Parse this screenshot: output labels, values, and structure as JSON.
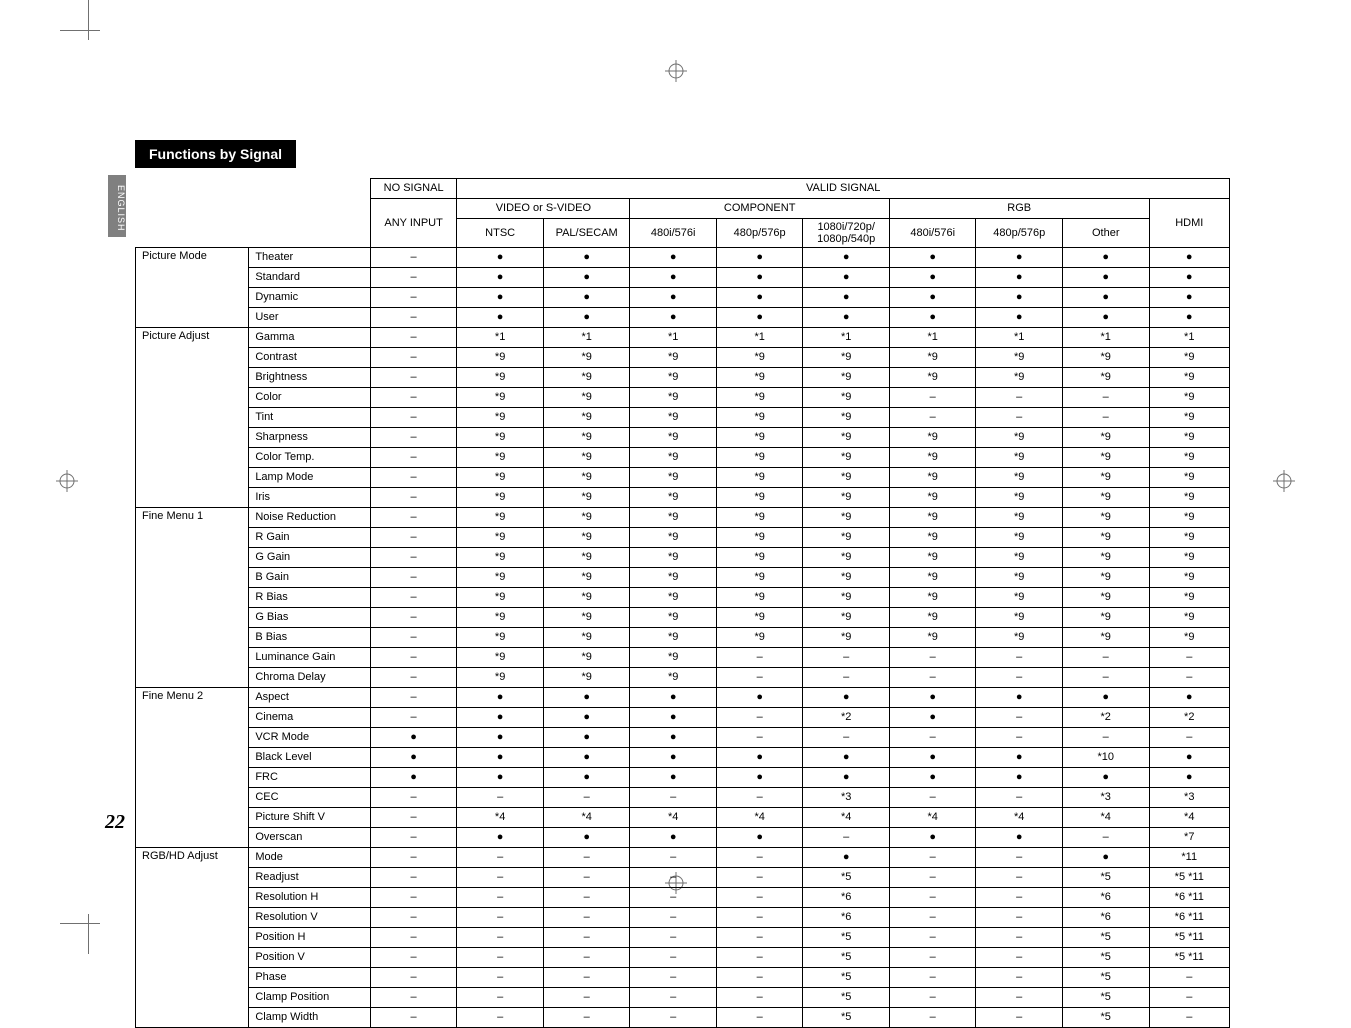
{
  "page_number": "22",
  "section_title": "Functions by Signal",
  "side_tab": "ENGLISH",
  "headers": {
    "no_signal": "NO SIGNAL",
    "valid_signal": "VALID SIGNAL",
    "any_input": "ANY INPUT",
    "video_svideo": "VIDEO or S-VIDEO",
    "component": "COMPONENT",
    "rgb": "RGB",
    "hdmi": "HDMI",
    "ntsc": "NTSC",
    "pal_secam": "PAL/SECAM",
    "c480i576i": "480i/576i",
    "c480p576p": "480p/576p",
    "c1080": "1080i/720p/ 1080p/540p",
    "r480i576i": "480i/576i",
    "r480p576p": "480p/576p",
    "other": "Other"
  },
  "groups": [
    {
      "name": "Picture Mode",
      "rows": [
        {
          "label": "Theater",
          "cells": [
            "–",
            "●",
            "●",
            "●",
            "●",
            "●",
            "●",
            "●",
            "●",
            "●"
          ]
        },
        {
          "label": "Standard",
          "cells": [
            "–",
            "●",
            "●",
            "●",
            "●",
            "●",
            "●",
            "●",
            "●",
            "●"
          ]
        },
        {
          "label": "Dynamic",
          "cells": [
            "–",
            "●",
            "●",
            "●",
            "●",
            "●",
            "●",
            "●",
            "●",
            "●"
          ]
        },
        {
          "label": "User",
          "cells": [
            "–",
            "●",
            "●",
            "●",
            "●",
            "●",
            "●",
            "●",
            "●",
            "●"
          ]
        }
      ]
    },
    {
      "name": "Picture Adjust",
      "rows": [
        {
          "label": "Gamma",
          "cells": [
            "–",
            "*1",
            "*1",
            "*1",
            "*1",
            "*1",
            "*1",
            "*1",
            "*1",
            "*1"
          ]
        },
        {
          "label": "Contrast",
          "cells": [
            "–",
            "*9",
            "*9",
            "*9",
            "*9",
            "*9",
            "*9",
            "*9",
            "*9",
            "*9"
          ]
        },
        {
          "label": "Brightness",
          "cells": [
            "–",
            "*9",
            "*9",
            "*9",
            "*9",
            "*9",
            "*9",
            "*9",
            "*9",
            "*9"
          ]
        },
        {
          "label": "Color",
          "cells": [
            "–",
            "*9",
            "*9",
            "*9",
            "*9",
            "*9",
            "–",
            "–",
            "–",
            "*9"
          ]
        },
        {
          "label": "Tint",
          "cells": [
            "–",
            "*9",
            "*9",
            "*9",
            "*9",
            "*9",
            "–",
            "–",
            "–",
            "*9"
          ]
        },
        {
          "label": "Sharpness",
          "cells": [
            "–",
            "*9",
            "*9",
            "*9",
            "*9",
            "*9",
            "*9",
            "*9",
            "*9",
            "*9"
          ]
        },
        {
          "label": "Color Temp.",
          "cells": [
            "–",
            "*9",
            "*9",
            "*9",
            "*9",
            "*9",
            "*9",
            "*9",
            "*9",
            "*9"
          ]
        },
        {
          "label": "Lamp Mode",
          "cells": [
            "–",
            "*9",
            "*9",
            "*9",
            "*9",
            "*9",
            "*9",
            "*9",
            "*9",
            "*9"
          ]
        },
        {
          "label": "Iris",
          "cells": [
            "–",
            "*9",
            "*9",
            "*9",
            "*9",
            "*9",
            "*9",
            "*9",
            "*9",
            "*9"
          ]
        }
      ]
    },
    {
      "name": "Fine Menu 1",
      "rows": [
        {
          "label": "Noise Reduction",
          "cells": [
            "–",
            "*9",
            "*9",
            "*9",
            "*9",
            "*9",
            "*9",
            "*9",
            "*9",
            "*9"
          ]
        },
        {
          "label": "R Gain",
          "cells": [
            "–",
            "*9",
            "*9",
            "*9",
            "*9",
            "*9",
            "*9",
            "*9",
            "*9",
            "*9"
          ]
        },
        {
          "label": "G Gain",
          "cells": [
            "–",
            "*9",
            "*9",
            "*9",
            "*9",
            "*9",
            "*9",
            "*9",
            "*9",
            "*9"
          ]
        },
        {
          "label": "B Gain",
          "cells": [
            "–",
            "*9",
            "*9",
            "*9",
            "*9",
            "*9",
            "*9",
            "*9",
            "*9",
            "*9"
          ]
        },
        {
          "label": "R Bias",
          "cells": [
            "–",
            "*9",
            "*9",
            "*9",
            "*9",
            "*9",
            "*9",
            "*9",
            "*9",
            "*9"
          ]
        },
        {
          "label": "G Bias",
          "cells": [
            "–",
            "*9",
            "*9",
            "*9",
            "*9",
            "*9",
            "*9",
            "*9",
            "*9",
            "*9"
          ]
        },
        {
          "label": "B Bias",
          "cells": [
            "–",
            "*9",
            "*9",
            "*9",
            "*9",
            "*9",
            "*9",
            "*9",
            "*9",
            "*9"
          ]
        },
        {
          "label": "Luminance Gain",
          "cells": [
            "–",
            "*9",
            "*9",
            "*9",
            "–",
            "–",
            "–",
            "–",
            "–",
            "–"
          ]
        },
        {
          "label": "Chroma Delay",
          "cells": [
            "–",
            "*9",
            "*9",
            "*9",
            "–",
            "–",
            "–",
            "–",
            "–",
            "–"
          ]
        }
      ]
    },
    {
      "name": "Fine Menu 2",
      "rows": [
        {
          "label": "Aspect",
          "cells": [
            "–",
            "●",
            "●",
            "●",
            "●",
            "●",
            "●",
            "●",
            "●",
            "●"
          ]
        },
        {
          "label": "Cinema",
          "cells": [
            "–",
            "●",
            "●",
            "●",
            "–",
            "*2",
            "●",
            "–",
            "*2",
            "*2"
          ]
        },
        {
          "label": "VCR Mode",
          "cells": [
            "●",
            "●",
            "●",
            "●",
            "–",
            "–",
            "–",
            "–",
            "–",
            "–"
          ]
        },
        {
          "label": "Black Level",
          "cells": [
            "●",
            "●",
            "●",
            "●",
            "●",
            "●",
            "●",
            "●",
            "*10",
            "●"
          ]
        },
        {
          "label": "FRC",
          "cells": [
            "●",
            "●",
            "●",
            "●",
            "●",
            "●",
            "●",
            "●",
            "●",
            "●"
          ]
        },
        {
          "label": "CEC",
          "cells": [
            "–",
            "–",
            "–",
            "–",
            "–",
            "*3",
            "–",
            "–",
            "*3",
            "*3"
          ]
        },
        {
          "label": "Picture Shift V",
          "cells": [
            "–",
            "*4",
            "*4",
            "*4",
            "*4",
            "*4",
            "*4",
            "*4",
            "*4",
            "*4"
          ]
        },
        {
          "label": "Overscan",
          "cells": [
            "–",
            "●",
            "●",
            "●",
            "●",
            "–",
            "●",
            "●",
            "–",
            "*7"
          ]
        }
      ]
    },
    {
      "name": "RGB/HD Adjust",
      "rows": [
        {
          "label": "Mode",
          "cells": [
            "–",
            "–",
            "–",
            "–",
            "–",
            "●",
            "–",
            "–",
            "●",
            "*11"
          ]
        },
        {
          "label": "Readjust",
          "cells": [
            "–",
            "–",
            "–",
            "–",
            "–",
            "*5",
            "–",
            "–",
            "*5",
            "*5  *11"
          ]
        },
        {
          "label": "Resolution H",
          "cells": [
            "–",
            "–",
            "–",
            "–",
            "–",
            "*6",
            "–",
            "–",
            "*6",
            "*6  *11"
          ]
        },
        {
          "label": "Resolution V",
          "cells": [
            "–",
            "–",
            "–",
            "–",
            "–",
            "*6",
            "–",
            "–",
            "*6",
            "*6  *11"
          ]
        },
        {
          "label": "Position H",
          "cells": [
            "–",
            "–",
            "–",
            "–",
            "–",
            "*5",
            "–",
            "–",
            "*5",
            "*5  *11"
          ]
        },
        {
          "label": "Position V",
          "cells": [
            "–",
            "–",
            "–",
            "–",
            "–",
            "*5",
            "–",
            "–",
            "*5",
            "*5  *11"
          ]
        },
        {
          "label": "Phase",
          "cells": [
            "–",
            "–",
            "–",
            "–",
            "–",
            "*5",
            "–",
            "–",
            "*5",
            "–"
          ]
        },
        {
          "label": "Clamp Position",
          "cells": [
            "–",
            "–",
            "–",
            "–",
            "–",
            "*5",
            "–",
            "–",
            "*5",
            "–"
          ]
        },
        {
          "label": "Clamp Width",
          "cells": [
            "–",
            "–",
            "–",
            "–",
            "–",
            "*5",
            "–",
            "–",
            "*5",
            "–"
          ]
        }
      ]
    }
  ]
}
